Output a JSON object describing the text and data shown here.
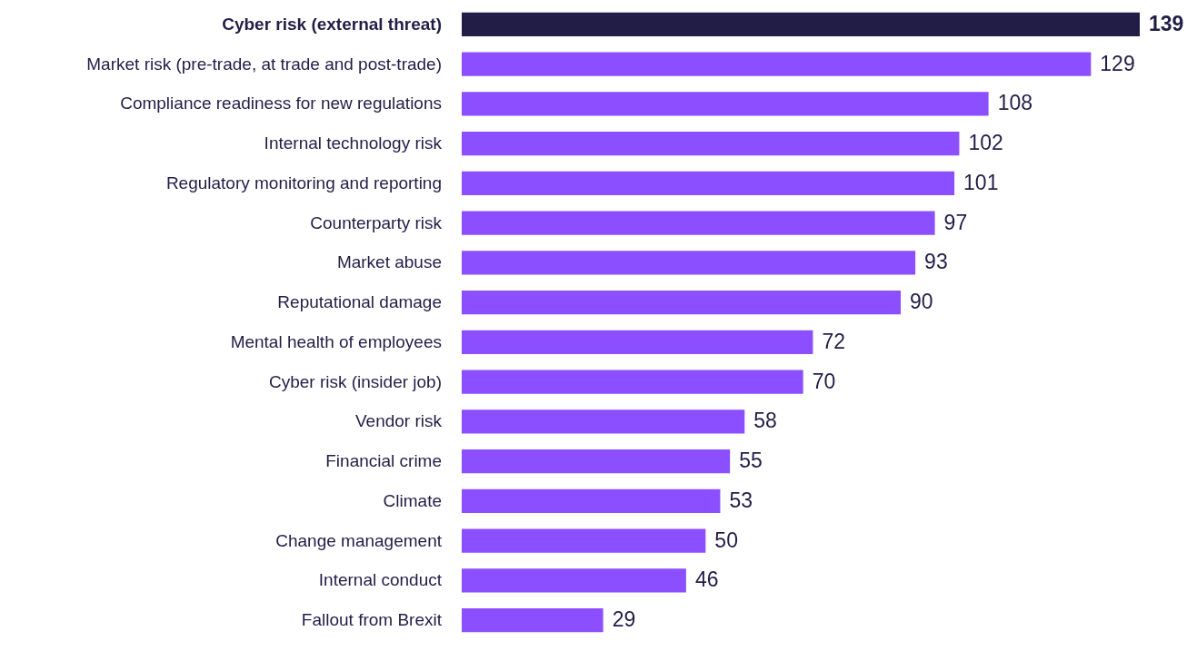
{
  "chart_data": {
    "type": "bar",
    "orientation": "horizontal",
    "data_labels": true,
    "categories": [
      "Cyber risk (external threat)",
      "Market risk (pre-trade, at trade and post-trade)",
      "Compliance readiness for new regulations",
      "Internal technology risk",
      "Regulatory monitoring and reporting",
      "Counterparty risk",
      "Market abuse",
      "Reputational damage",
      "Mental health of employees",
      "Cyber risk (insider job)",
      "Vendor risk",
      "Financial crime",
      "Climate",
      "Change management",
      "Internal conduct",
      "Fallout from Brexit"
    ],
    "values": [
      139,
      129,
      108,
      102,
      101,
      97,
      93,
      90,
      72,
      70,
      58,
      55,
      53,
      50,
      46,
      29
    ],
    "colors": [
      "#221d47",
      "#8c4fff",
      "#8c4fff",
      "#8c4fff",
      "#8c4fff",
      "#8c4fff",
      "#8c4fff",
      "#8c4fff",
      "#8c4fff",
      "#8c4fff",
      "#8c4fff",
      "#8c4fff",
      "#8c4fff",
      "#8c4fff",
      "#8c4fff",
      "#8c4fff"
    ]
  }
}
